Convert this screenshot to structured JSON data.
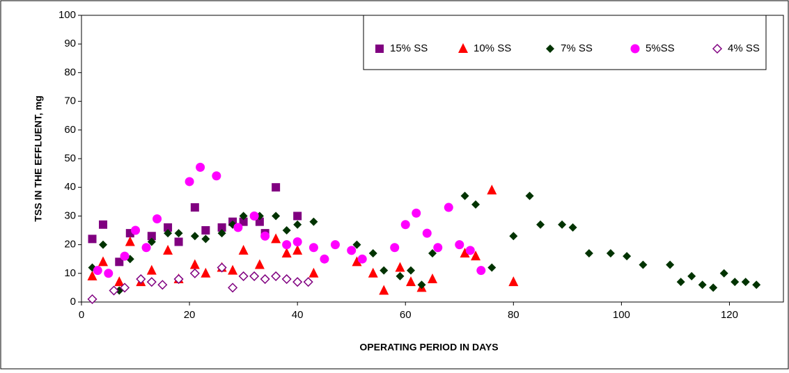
{
  "chart_data": {
    "type": "scatter",
    "x_label": "OPERATING PERIOD IN DAYS",
    "y_label": "TSS IN THE EFFLUENT, mg",
    "xlim": [
      0,
      130
    ],
    "xticks": [
      0,
      20,
      40,
      60,
      80,
      100,
      120
    ],
    "ylim": [
      0,
      100
    ],
    "yticks": [
      0,
      10,
      20,
      30,
      40,
      50,
      60,
      70,
      80,
      90,
      100
    ],
    "legend": "top-right",
    "series": [
      {
        "name": "15% SS",
        "color": "#800080",
        "marker": "square",
        "x": [
          2,
          4,
          7,
          9,
          13,
          16,
          18,
          21,
          23,
          26,
          28,
          30,
          33,
          34,
          36,
          40
        ],
        "values": [
          22,
          27,
          14,
          24,
          23,
          26,
          21,
          33,
          25,
          26,
          28,
          28,
          28,
          24,
          40,
          30
        ]
      },
      {
        "name": "10% SS",
        "color": "#ff0000",
        "marker": "triangle",
        "x": [
          2,
          4,
          7,
          9,
          11,
          13,
          16,
          18,
          21,
          23,
          26,
          28,
          30,
          33,
          36,
          38,
          40,
          43,
          51,
          54,
          56,
          59,
          61,
          63,
          65,
          71,
          73,
          76,
          80
        ],
        "values": [
          9,
          14,
          7,
          21,
          7,
          11,
          18,
          8,
          13,
          10,
          12,
          11,
          18,
          13,
          22,
          17,
          18,
          10,
          14,
          10,
          4,
          12,
          7,
          5,
          8,
          17,
          16,
          39,
          7
        ]
      },
      {
        "name": "7% SS",
        "color": "#003300",
        "marker": "diamond",
        "x": [
          2,
          4,
          7,
          9,
          13,
          16,
          18,
          21,
          23,
          26,
          28,
          30,
          33,
          36,
          38,
          40,
          43,
          51,
          54,
          56,
          59,
          61,
          63,
          65,
          71,
          73,
          76,
          80,
          83,
          85,
          89,
          91,
          94,
          98,
          101,
          104,
          109,
          111,
          113,
          115,
          117,
          119,
          121,
          123,
          125
        ],
        "values": [
          12,
          20,
          4,
          15,
          21,
          24,
          24,
          23,
          22,
          24,
          27,
          30,
          30,
          30,
          25,
          27,
          28,
          20,
          17,
          11,
          9,
          11,
          6,
          17,
          37,
          34,
          12,
          23,
          37,
          27,
          27,
          26,
          17,
          17,
          16,
          13,
          13,
          7,
          9,
          6,
          5,
          10,
          7,
          7,
          6
        ]
      },
      {
        "name": "5%SS",
        "color": "#ff00ff",
        "marker": "circle",
        "x": [
          3,
          5,
          8,
          10,
          12,
          14,
          20,
          22,
          25,
          29,
          32,
          34,
          38,
          40,
          43,
          45,
          47,
          50,
          52,
          58,
          60,
          62,
          64,
          66,
          68,
          70,
          72,
          74
        ],
        "values": [
          11,
          10,
          16,
          25,
          19,
          29,
          42,
          47,
          44,
          26,
          30,
          23,
          20,
          21,
          19,
          15,
          20,
          18,
          15,
          19,
          27,
          31,
          24,
          19,
          33,
          20,
          18,
          11
        ]
      },
      {
        "name": "4% SS",
        "color": "#800080",
        "marker": "open-diamond",
        "x": [
          2,
          6,
          8,
          11,
          13,
          15,
          18,
          21,
          26,
          28,
          30,
          32,
          34,
          36,
          38,
          40,
          42
        ],
        "values": [
          1,
          4,
          5,
          8,
          7,
          6,
          8,
          10,
          12,
          5,
          9,
          9,
          8,
          9,
          8,
          7,
          7
        ]
      }
    ]
  }
}
